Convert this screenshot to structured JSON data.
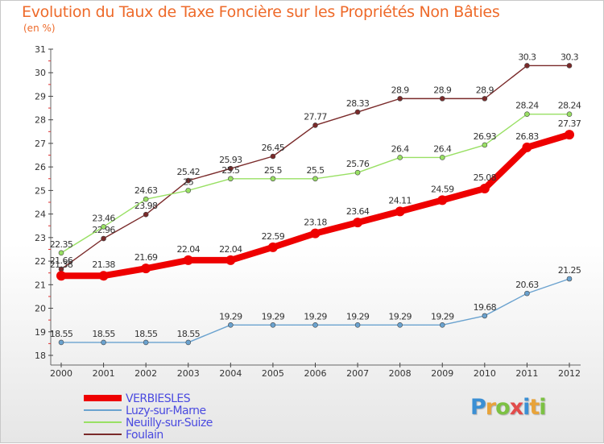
{
  "chart_data": {
    "type": "line",
    "title": "Evolution du Taux de Taxe Foncière sur les Propriétés Non Bâties",
    "subtitle": "(en %)",
    "x": [
      "2000",
      "2001",
      "2002",
      "2003",
      "2004",
      "2005",
      "2006",
      "2007",
      "2008",
      "2009",
      "2010",
      "2011",
      "2012"
    ],
    "ylim": [
      18,
      31
    ],
    "yticks": [
      18,
      19,
      20,
      21,
      22,
      23,
      24,
      25,
      26,
      27,
      28,
      29,
      30,
      31
    ],
    "grid": false,
    "legend_position": "bottom-left",
    "series": [
      {
        "name": "Foulain",
        "color": "#7a2a2a",
        "values": [
          21.66,
          22.96,
          23.98,
          25.42,
          25.93,
          26.45,
          27.77,
          28.33,
          28.9,
          28.9,
          28.9,
          30.3,
          30.3
        ],
        "labels": [
          "21.66",
          "22.96",
          "23.98",
          "25.42",
          "25.93",
          "26.45",
          "27.77",
          "28.33",
          "28.9",
          "28.9",
          "28.9",
          "30.3",
          "30.3"
        ]
      },
      {
        "name": "Neuilly-sur-Suize",
        "color": "#99e064",
        "values": [
          22.35,
          23.46,
          24.63,
          25,
          25.5,
          25.5,
          25.5,
          25.76,
          26.4,
          26.4,
          26.93,
          28.24,
          28.24
        ],
        "labels": [
          "22.35",
          "23.46",
          "24.63",
          "25",
          "25.5",
          "25.5",
          "25.5",
          "25.76",
          "26.4",
          "26.4",
          "26.93",
          "28.24",
          "28.24"
        ]
      },
      {
        "name": "Luzy-sur-Marne",
        "color": "#6aa2cf",
        "values": [
          18.55,
          18.55,
          18.55,
          18.55,
          19.29,
          19.29,
          19.29,
          19.29,
          19.29,
          19.29,
          19.68,
          20.63,
          21.25
        ],
        "labels": [
          "18.55",
          "18.55",
          "18.55",
          "18.55",
          "19.29",
          "19.29",
          "19.29",
          "19.29",
          "19.29",
          "19.29",
          "19.68",
          "20.63",
          "21.25"
        ]
      },
      {
        "name": "VERBIESLES",
        "color": "#ee0000",
        "values": [
          21.38,
          21.38,
          21.69,
          22.04,
          22.04,
          22.59,
          23.18,
          23.64,
          24.11,
          24.59,
          25.08,
          26.83,
          27.37
        ],
        "labels": [
          "21.38",
          "21.38",
          "21.69",
          "22.04",
          "22.04",
          "22.59",
          "23.18",
          "23.64",
          "24.11",
          "24.59",
          "25.08",
          "26.83",
          "27.37"
        ]
      }
    ]
  },
  "legend": [
    {
      "label": "VERBIESLES",
      "color": "#ee0000",
      "text_color": "#4a4ae0",
      "thick": true
    },
    {
      "label": "Luzy-sur-Marne",
      "color": "#6aa2cf",
      "text_color": "#4a4ae0",
      "thick": false
    },
    {
      "label": "Neuilly-sur-Suize",
      "color": "#99e064",
      "text_color": "#4a4ae0",
      "thick": false
    },
    {
      "label": "Foulain",
      "color": "#7a2a2a",
      "text_color": "#4a4ae0",
      "thick": false
    }
  ],
  "logo": {
    "letters": [
      "P",
      "r",
      "o",
      "x",
      "i",
      "t",
      "i"
    ],
    "colors": [
      "#3b8fd4",
      "#e8a33a",
      "#7cc143",
      "#e24b4b",
      "#3b8fd4",
      "#e8a33a",
      "#7cc143"
    ]
  }
}
